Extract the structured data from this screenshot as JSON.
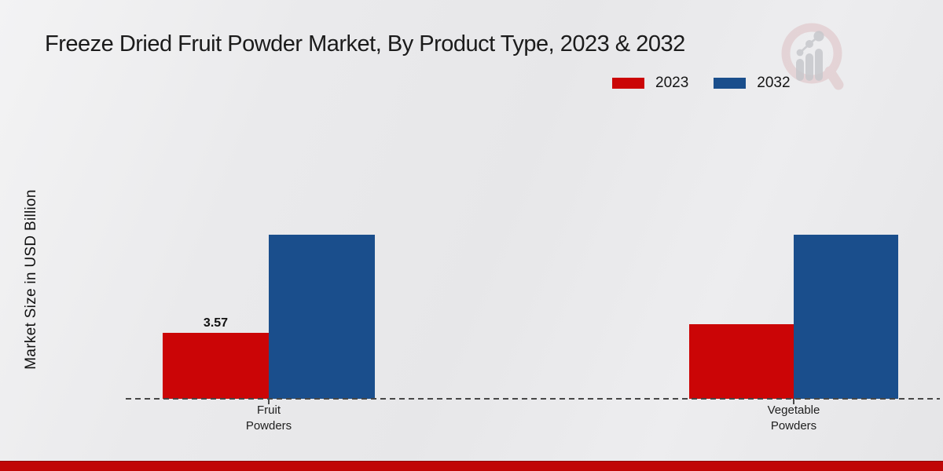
{
  "header": {
    "title": "Freeze Dried Fruit Powder Market, By Product Type, 2023 & 2032"
  },
  "legend": {
    "items": [
      {
        "label": "2023",
        "color": "#cb0506"
      },
      {
        "label": "2032",
        "color": "#1a4e8c"
      }
    ]
  },
  "chart_data": {
    "type": "bar",
    "title": "Freeze Dried Fruit Powder Market, By Product Type, 2023 & 2032",
    "xlabel": "",
    "ylabel": "Market Size in USD Billion",
    "categories": [
      "Fruit Powders",
      "Vegetable Powders"
    ],
    "categories_display": [
      "Fruit\nPowders",
      "Vegetable\nPowders"
    ],
    "series": [
      {
        "name": "2023",
        "color": "#cb0506",
        "values": [
          3.57,
          4.04
        ]
      },
      {
        "name": "2032",
        "color": "#1a4e8c",
        "values": [
          8.9,
          8.9
        ]
      }
    ],
    "data_labels": [
      {
        "series": "2023",
        "category": "Fruit Powders",
        "text": "3.57"
      }
    ],
    "ylim": [
      0,
      10
    ],
    "grid": false,
    "axis_ticks_visible": false,
    "legend_position": "top-right",
    "baseline_style": "dashed"
  },
  "watermark": {
    "name": "market-research-logo",
    "ring_color": "#ddbfc2",
    "bars_color": "#c7c8cc"
  },
  "footer": {
    "accent_color": "#c00606"
  }
}
